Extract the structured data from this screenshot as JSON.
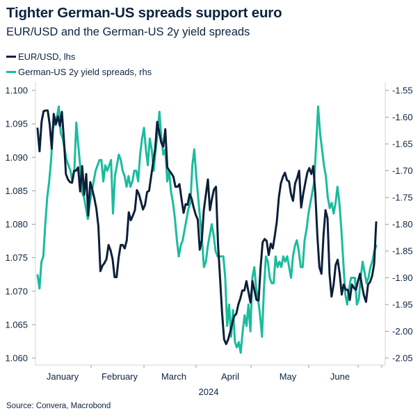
{
  "chart_data": {
    "type": "line",
    "title": "Tighter German-US spreads support euro",
    "subtitle": "EUR/USD and the German-US 2y yield spreads",
    "xlabel": "2024",
    "x_ticks": [
      "January",
      "February",
      "March",
      "April",
      "May",
      "June"
    ],
    "x_range": [
      "2024-01-02",
      "2024-06-21"
    ],
    "left_axis": {
      "label": "EUR/USD",
      "ticks": [
        "1.100",
        "1.095",
        "1.090",
        "1.085",
        "1.080",
        "1.075",
        "1.070",
        "1.065",
        "1.060"
      ],
      "ylim": [
        1.06,
        1.1
      ]
    },
    "right_axis": {
      "label": "German-US 2y yield spreads",
      "ticks": [
        "-1.55",
        "-1.60",
        "-1.65",
        "-1.70",
        "-1.75",
        "-1.80",
        "-1.85",
        "-1.90",
        "-1.95",
        "-2.00",
        "-2.05"
      ],
      "ylim": [
        -2.05,
        -1.55
      ]
    },
    "grid": false,
    "legend_position": "top-left",
    "series": [
      {
        "name": "EUR/USD, lhs",
        "axis": "left",
        "color": "#0c1f3a",
        "values": [
          1.0943,
          1.0909,
          1.0953,
          1.0969,
          1.097,
          1.097,
          1.0949,
          1.0913,
          1.0965,
          1.0949,
          1.0961,
          1.0947,
          1.0968,
          1.0927,
          1.0875,
          1.0867,
          1.0863,
          1.0862,
          1.088,
          1.088,
          1.0885,
          1.0849,
          1.0887,
          1.0844,
          1.0875,
          1.0813,
          1.0863,
          1.0852,
          1.0839,
          1.0823,
          1.0797,
          1.073,
          1.0738,
          1.0742,
          1.0748,
          1.0769,
          1.0761,
          1.0748,
          1.0721,
          1.0721,
          1.075,
          1.0769,
          1.0769,
          1.0764,
          1.0776,
          1.0818,
          1.0806,
          1.0813,
          1.0821,
          1.0851,
          1.0845,
          1.0834,
          1.0822,
          1.0829,
          1.0848,
          1.085,
          1.0871,
          1.0892,
          1.0912,
          1.0953,
          1.0937,
          1.0922,
          1.0916,
          1.0942,
          1.0885,
          1.088,
          1.0876,
          1.0871,
          1.0856,
          1.0856,
          1.086,
          1.0838,
          1.0817,
          1.083,
          1.0829,
          1.0845,
          1.0838,
          1.0825,
          1.0814,
          1.0807,
          1.0762,
          1.0776,
          1.0821,
          1.0844,
          1.0867,
          1.0821,
          1.0838,
          1.0852,
          1.0856,
          1.0771,
          1.0719,
          1.0667,
          1.0628,
          1.0621,
          1.0628,
          1.0639,
          1.0652,
          1.0663,
          1.0666,
          1.068,
          1.0689,
          1.0701,
          1.0701,
          1.0715,
          1.0699,
          1.0683,
          1.0715,
          1.0701,
          1.0687,
          1.0686,
          1.0736,
          1.0773,
          1.0778,
          1.0775,
          1.0754,
          1.0771,
          1.0764,
          1.0783,
          1.0804,
          1.084,
          1.0861,
          1.0871,
          1.0877,
          1.0866,
          1.0864,
          1.0845,
          1.0835,
          1.0861,
          1.0869,
          1.088,
          1.0825,
          1.0845,
          1.0861,
          1.0877,
          1.0884,
          1.0875,
          1.0887,
          1.0845,
          1.0783,
          1.0736,
          1.0726,
          1.0783,
          1.0821,
          1.0809,
          1.0726,
          1.0692,
          1.071,
          1.0739,
          1.0747,
          1.0726,
          1.0695,
          1.071,
          1.0702,
          1.0702,
          1.0687,
          1.071,
          1.0705,
          1.0702,
          1.0715,
          1.0726,
          1.0708,
          1.0693,
          1.0684,
          1.071,
          1.0714,
          1.0723,
          1.0741,
          1.0803
        ]
      },
      {
        "name": "German-US 2y yield spreads, rhs",
        "axis": "right",
        "color": "#1abc9c",
        "values": [
          -1.895,
          -1.92,
          -1.87,
          -1.86,
          -1.8,
          -1.75,
          -1.72,
          -1.68,
          -1.62,
          -1.61,
          -1.6,
          -1.58,
          -1.63,
          -1.64,
          -1.66,
          -1.68,
          -1.69,
          -1.7,
          -1.72,
          -1.7,
          -1.61,
          -1.65,
          -1.69,
          -1.74,
          -1.75,
          -1.77,
          -1.79,
          -1.76,
          -1.74,
          -1.72,
          -1.7,
          -1.69,
          -1.68,
          -1.68,
          -1.72,
          -1.69,
          -1.7,
          -1.69,
          -1.68,
          -1.78,
          -1.71,
          -1.69,
          -1.67,
          -1.68,
          -1.7,
          -1.71,
          -1.73,
          -1.71,
          -1.73,
          -1.72,
          -1.7,
          -1.7,
          -1.72,
          -1.67,
          -1.64,
          -1.62,
          -1.66,
          -1.69,
          -1.64,
          -1.66,
          -1.7,
          -1.66,
          -1.63,
          -1.59,
          -1.64,
          -1.67,
          -1.66,
          -1.72,
          -1.7,
          -1.74,
          -1.76,
          -1.79,
          -1.83,
          -1.86,
          -1.84,
          -1.83,
          -1.81,
          -1.79,
          -1.77,
          -1.76,
          -1.69,
          -1.66,
          -1.71,
          -1.75,
          -1.79,
          -1.83,
          -1.88,
          -1.87,
          -1.84,
          -1.82,
          -1.8,
          -1.82,
          -1.85,
          -1.86,
          -1.86,
          -1.86,
          -1.86,
          -1.9,
          -1.99,
          -1.95,
          -2.01,
          -1.96,
          -2.02,
          -2.03,
          -2.02,
          -2.04,
          -2.0,
          -1.97,
          -1.99,
          -1.95,
          -2.0,
          -1.9,
          -1.88,
          -1.92,
          -1.94,
          -1.97,
          -2.01,
          -1.92,
          -1.86,
          -1.87,
          -1.9,
          -1.91,
          -1.91,
          -1.86,
          -1.88,
          -1.87,
          -1.88,
          -1.86,
          -1.87,
          -1.86,
          -1.88,
          -1.9,
          -1.86,
          -1.84,
          -1.83,
          -1.85,
          -1.88,
          -1.88,
          -1.83,
          -1.81,
          -1.78,
          -1.76,
          -1.74,
          -1.72,
          -1.65,
          -1.58,
          -1.63,
          -1.66,
          -1.69,
          -1.71,
          -1.75,
          -1.77,
          -1.76,
          -1.78,
          -1.76,
          -1.73,
          -1.76,
          -1.81,
          -1.87,
          -1.93,
          -1.95,
          -1.92,
          -1.9,
          -1.9,
          -1.9,
          -1.95,
          -1.94,
          -1.9,
          -1.87,
          -1.89,
          -1.91,
          -1.9,
          -1.88,
          -1.87,
          -1.85,
          -1.84
        ]
      }
    ]
  },
  "source": "Source: Convera, Macrobond"
}
